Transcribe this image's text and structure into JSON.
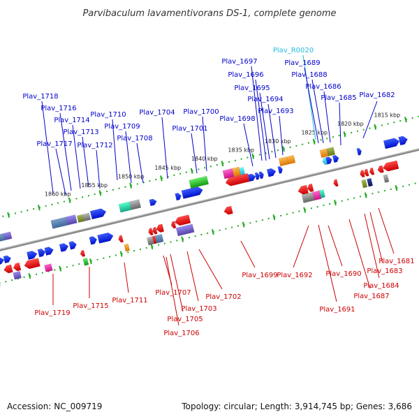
{
  "title": "Parvibaculum lavamentivorans DS-1, complete genome",
  "footer": {
    "accession": "Accession: NC_009719",
    "summary": "Topology: circular; Length: 3,914,745 bp; Genes: 3,686"
  },
  "colors": {
    "forward_label": "#0000cc",
    "reverse_label": "#cc0000",
    "rna_label": "#22bbdd",
    "backbone": "#888888",
    "tick": "#22aa22"
  },
  "kbp_ticks": [
    "1815 kbp",
    "1820 kbp",
    "1825 kbp",
    "1830 kbp",
    "1835 kbp",
    "1840 kbp",
    "1845 kbp",
    "1850 kbp",
    "1855 kbp",
    "1860 kbp"
  ],
  "forward_labels": [
    "Plav_R0020",
    "Plav_1689",
    "Plav_1697",
    "Plav_1696",
    "Plav_1688",
    "Plav_1695",
    "Plav_1686",
    "Plav_1694",
    "Plav_1685",
    "Plav_1682",
    "Plav_1693",
    "Plav_1700",
    "Plav_1698",
    "Plav_1701",
    "Plav_1704",
    "Plav_1710",
    "Plav_1709",
    "Plav_1708",
    "Plav_1718",
    "Plav_1716",
    "Plav_1714",
    "Plav_1713",
    "Plav_1717",
    "Plav_1712"
  ],
  "reverse_labels": [
    "Plav_1719",
    "Plav_1715",
    "Plav_1711",
    "Plav_1707",
    "Plav_1705",
    "Plav_1706",
    "Plav_1703",
    "Plav_1702",
    "Plav_1699",
    "Plav_1692",
    "Plav_1690",
    "Plav_1691",
    "Plav_1687",
    "Plav_1684",
    "Plav_1683",
    "Plav_1681"
  ]
}
